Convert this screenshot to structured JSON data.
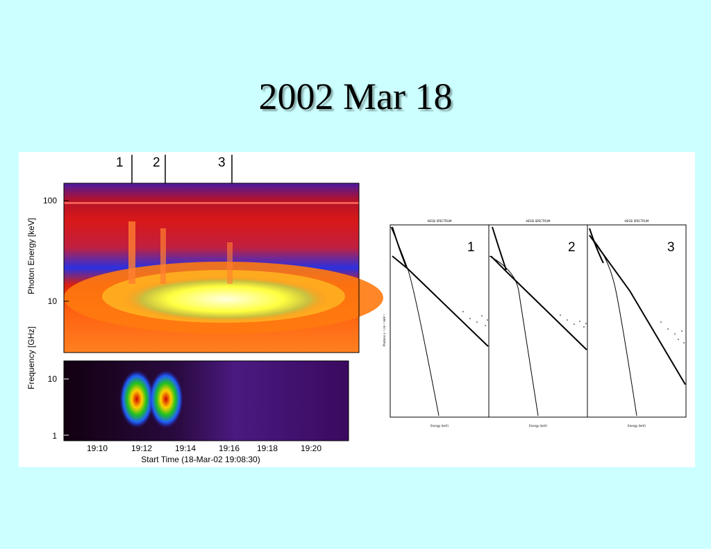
{
  "slide": {
    "title": "2002 Mar 18"
  },
  "spectrogram": {
    "arrows": [
      "1",
      "2",
      "3"
    ],
    "hxr": {
      "ylabel": "Photon Energy [keV]",
      "yticks": [
        "100",
        "10"
      ]
    },
    "radio": {
      "ylabel": "Frequency [GHz]",
      "yticks": [
        "10",
        "1"
      ]
    },
    "xticks": [
      "19:10",
      "19:12",
      "19:14",
      "19:16",
      "19:18",
      "19:20"
    ],
    "xlabel": "Start Time (18-Mar-02 19:08:30)"
  },
  "spectra": {
    "panels": [
      {
        "title": "HESSI SPECTRUM",
        "number": "1",
        "xlabel": "Energy (keV)",
        "ylabel": "Photons s⁻¹ cm⁻² keV⁻¹"
      },
      {
        "title": "HESSI SPECTRUM",
        "number": "2",
        "xlabel": "Energy (keV)"
      },
      {
        "title": "HESSI SPECTRUM",
        "number": "3",
        "xlabel": "Energy (keV)"
      }
    ]
  },
  "colors": {
    "background": "#ccffff",
    "panel": "#ffffff"
  }
}
